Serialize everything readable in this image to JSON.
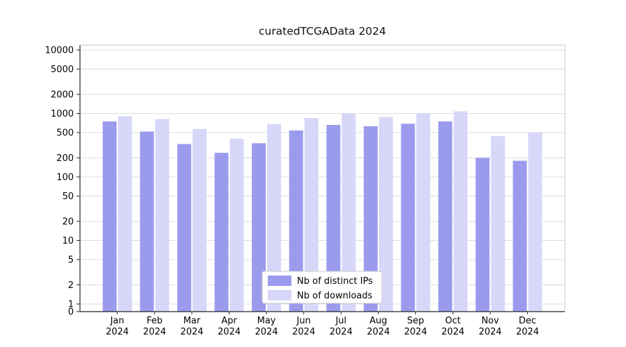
{
  "title": "curatedTCGAData 2024",
  "background_color": "#ffffff",
  "chart_data": {
    "type": "bar",
    "title": "curatedTCGAData 2024",
    "categories": [
      "Jan",
      "Feb",
      "Mar",
      "Apr",
      "May",
      "Jun",
      "Jul",
      "Aug",
      "Sep",
      "Oct",
      "Nov",
      "Dec"
    ],
    "year_label": "2024",
    "series": [
      {
        "name": "Nb of distinct IPs",
        "color": "#9b9bee",
        "values": [
          750,
          520,
          330,
          240,
          340,
          540,
          660,
          630,
          690,
          750,
          200,
          180
        ]
      },
      {
        "name": "Nb of downloads",
        "color": "#d7d7f9",
        "values": [
          900,
          820,
          570,
          400,
          680,
          850,
          1000,
          880,
          1010,
          1080,
          440,
          500
        ]
      }
    ],
    "y_scale": "log",
    "y_ticks": [
      0,
      1,
      2,
      5,
      10,
      20,
      50,
      100,
      200,
      500,
      1000,
      2000,
      5000,
      10000
    ],
    "ylim": [
      0,
      14000
    ],
    "grid": true,
    "gridline_color": "#dcdcdc",
    "axis_color": "#262626",
    "legend_position": "lower center",
    "legend_labels": [
      "Nb of distinct IPs",
      "Nb of downloads"
    ]
  }
}
